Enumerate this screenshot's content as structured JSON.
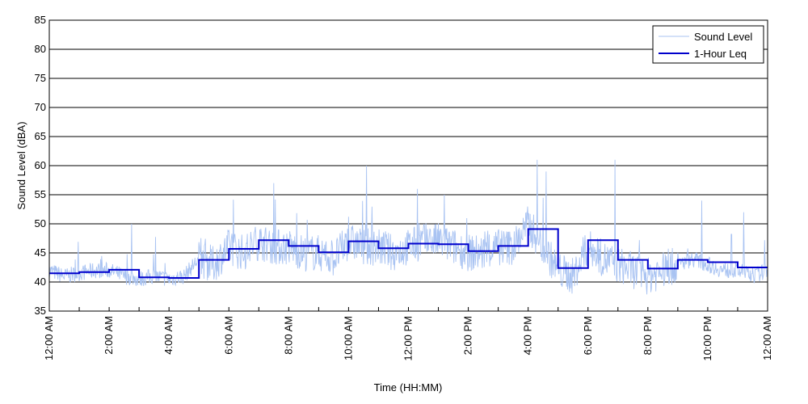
{
  "chart_data": {
    "type": "line",
    "xlabel": "Time (HH:MM)",
    "ylabel": "Sound Level (dBA)",
    "ylim": [
      35,
      85
    ],
    "xlim_hours": [
      0,
      24
    ],
    "y_ticks": [
      35,
      40,
      45,
      50,
      55,
      60,
      65,
      70,
      75,
      80,
      85
    ],
    "x_tick_labels": [
      "12:00 AM",
      "2:00 AM",
      "4:00 AM",
      "6:00 AM",
      "8:00 AM",
      "10:00 AM",
      "12:00 PM",
      "2:00 PM",
      "4:00 PM",
      "6:00 PM",
      "8:00 PM",
      "10:00 PM",
      "12:00 AM"
    ],
    "grid": "horizontal",
    "legend_position": "top-right",
    "colors": {
      "sound_level": "#a9c3f2",
      "leq": "#0000cc"
    },
    "series": [
      {
        "name": "Sound Level",
        "hours": [
          0,
          0.5,
          1,
          1.5,
          2,
          2.5,
          3,
          3.5,
          4,
          4.5,
          5,
          5.5,
          6,
          6.5,
          7,
          7.5,
          8,
          8.5,
          9,
          9.5,
          10,
          10.5,
          11,
          11.5,
          12,
          12.5,
          13,
          13.5,
          14,
          14.5,
          15,
          15.5,
          16,
          16.5,
          17,
          17.5,
          18,
          18.5,
          19,
          19.5,
          20,
          20.5,
          21,
          21.5,
          22,
          22.5,
          23,
          23.5,
          24
        ],
        "values": [
          42,
          41,
          41.5,
          42,
          42,
          41,
          40.5,
          41,
          40.5,
          41,
          44,
          43,
          46,
          45,
          47,
          46,
          46,
          45,
          45,
          44,
          47,
          46,
          46,
          45,
          46,
          47,
          47,
          46,
          45,
          45,
          46,
          46,
          50,
          46,
          42,
          41,
          46,
          44,
          43,
          42,
          41,
          42,
          43,
          44,
          43,
          42,
          42,
          41,
          42
        ],
        "peaks": [
          {
            "hour": 2.75,
            "value": 50
          },
          {
            "hour": 7.5,
            "value": 57
          },
          {
            "hour": 10.6,
            "value": 60
          },
          {
            "hour": 12.3,
            "value": 56
          },
          {
            "hour": 13.2,
            "value": 55
          },
          {
            "hour": 16.3,
            "value": 61
          },
          {
            "hour": 16.6,
            "value": 59
          },
          {
            "hour": 18.9,
            "value": 61
          },
          {
            "hour": 21.8,
            "value": 54
          },
          {
            "hour": 23.2,
            "value": 52
          }
        ]
      },
      {
        "name": "1-Hour Leq",
        "hours": [
          0,
          1,
          2,
          3,
          4,
          5,
          6,
          7,
          8,
          9,
          10,
          11,
          12,
          13,
          14,
          15,
          16,
          17,
          18,
          19,
          20,
          21,
          22,
          23
        ],
        "values": [
          41.5,
          41.7,
          42.1,
          40.8,
          40.7,
          43.8,
          45.7,
          47.2,
          46.2,
          45.1,
          47.0,
          45.8,
          46.6,
          46.5,
          45.3,
          46.2,
          49.1,
          42.4,
          47.2,
          43.8,
          42.3,
          43.8,
          43.4,
          42.5
        ]
      }
    ]
  }
}
